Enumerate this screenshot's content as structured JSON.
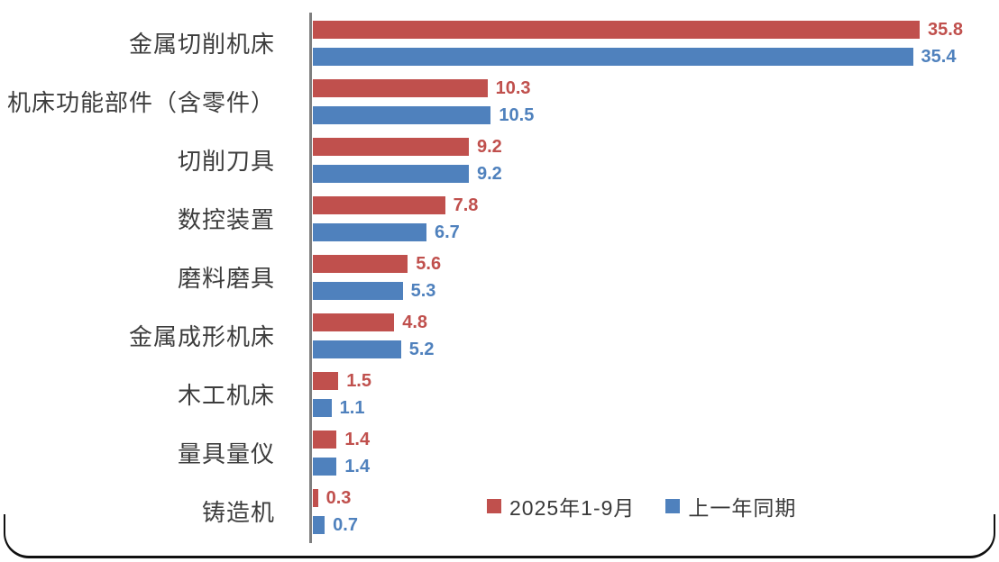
{
  "chart_data": {
    "type": "bar",
    "orientation": "horizontal",
    "title": "",
    "xlabel": "",
    "ylabel": "",
    "grid": false,
    "legend_position": "bottom-inside",
    "value_labels": true,
    "xlim": [
      0,
      40
    ],
    "categories": [
      "金属切削机床",
      "机床功能部件（含零件）",
      "切削刀具",
      "数控装置",
      "磨料磨具",
      "金属成形机床",
      "木工机床",
      "量具量仪",
      "铸造机"
    ],
    "series": [
      {
        "name": "2025年1-9月",
        "color": "#c0504d",
        "values": [
          35.8,
          10.3,
          9.2,
          7.8,
          5.6,
          4.8,
          1.5,
          1.4,
          0.3
        ]
      },
      {
        "name": "上一年同期",
        "color": "#4f81bd",
        "values": [
          35.4,
          10.5,
          9.2,
          6.7,
          5.3,
          5.2,
          1.1,
          1.4,
          0.7
        ]
      }
    ]
  },
  "colors": {
    "axis": "#7f7f7f",
    "label_text": "#3d3d3d",
    "legend_text": "#3a3a3a",
    "series_current": "#c0504d",
    "series_previous": "#4f81bd",
    "border": "#101010",
    "background": "#ffffff"
  }
}
